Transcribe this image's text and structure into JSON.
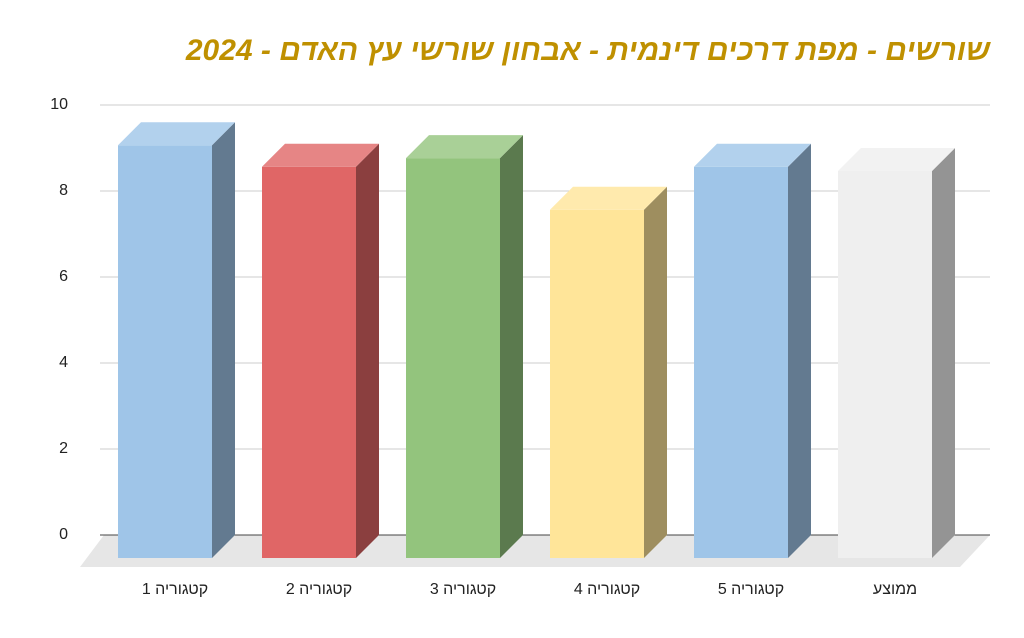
{
  "chart_data": {
    "type": "bar3d",
    "title": "שורשים - מפת דרכים דינמית - אבחון שורשי עץ האדם - 2024",
    "categories": [
      "קטגוריה 1",
      "קטגוריה 2",
      "קטגוריה 3",
      "קטגוריה 4",
      "קטגוריה 5",
      "ממוצע"
    ],
    "values": [
      9.6,
      9.1,
      9.3,
      8.1,
      9.1,
      9.0
    ],
    "colors": [
      "#9fc5e8",
      "#e06666",
      "#93c47d",
      "#ffe599",
      "#9fc5e8",
      "#efefef"
    ],
    "ylim": [
      0,
      10
    ],
    "yticks": [
      0,
      2,
      4,
      6,
      8,
      10
    ],
    "grid": true
  }
}
